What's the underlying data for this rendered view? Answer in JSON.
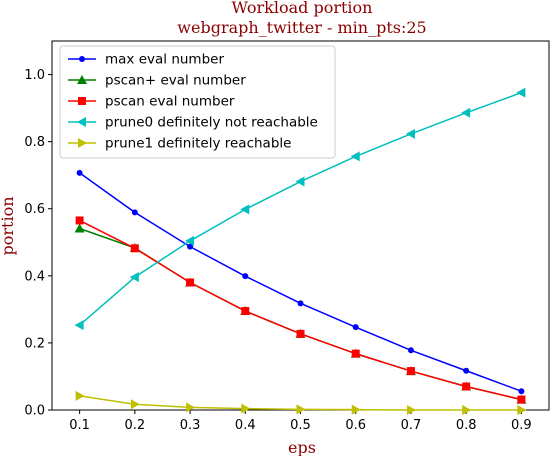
{
  "chart_data": {
    "type": "line",
    "title": "Workload portion",
    "subtitle": "webgraph_twitter - min_pts:25",
    "xlabel": "eps",
    "ylabel": "portion",
    "x": [
      0.1,
      0.2,
      0.3,
      0.4,
      0.5,
      0.6,
      0.7,
      0.8,
      0.9
    ],
    "xlim": [
      0.05,
      0.95
    ],
    "ylim": [
      0,
      1.1
    ],
    "xticks": [
      "0.1",
      "0.2",
      "0.3",
      "0.4",
      "0.5",
      "0.6",
      "0.7",
      "0.8",
      "0.9"
    ],
    "yticks": [
      "0.0",
      "0.2",
      "0.4",
      "0.6",
      "0.8",
      "1.0"
    ],
    "grid": false,
    "legend_position": "top-left",
    "series": [
      {
        "name": "max eval number",
        "color": "#0000ff",
        "marker": "circle",
        "values": [
          0.707,
          0.589,
          0.487,
          0.399,
          0.318,
          0.247,
          0.178,
          0.117,
          0.056
        ]
      },
      {
        "name": "pscan+ eval number",
        "color": "#008000",
        "marker": "triangle-up",
        "values": [
          0.541,
          0.483,
          0.38,
          0.295,
          0.227,
          0.168,
          0.116,
          0.07,
          0.031
        ]
      },
      {
        "name": "pscan eval number",
        "color": "#ff0000",
        "marker": "square",
        "values": [
          0.565,
          0.482,
          0.38,
          0.295,
          0.227,
          0.168,
          0.116,
          0.07,
          0.031
        ]
      },
      {
        "name": "prune0 definitely not reachable",
        "color": "#00bfbf",
        "marker": "triangle-left",
        "values": [
          0.253,
          0.396,
          0.504,
          0.598,
          0.681,
          0.756,
          0.823,
          0.886,
          0.946
        ]
      },
      {
        "name": "prune1 definitely reachable",
        "color": "#bfbf00",
        "marker": "triangle-right",
        "values": [
          0.042,
          0.017,
          0.008,
          0.004,
          0.002,
          0.001,
          0.0,
          0.0,
          0.0
        ]
      }
    ]
  }
}
